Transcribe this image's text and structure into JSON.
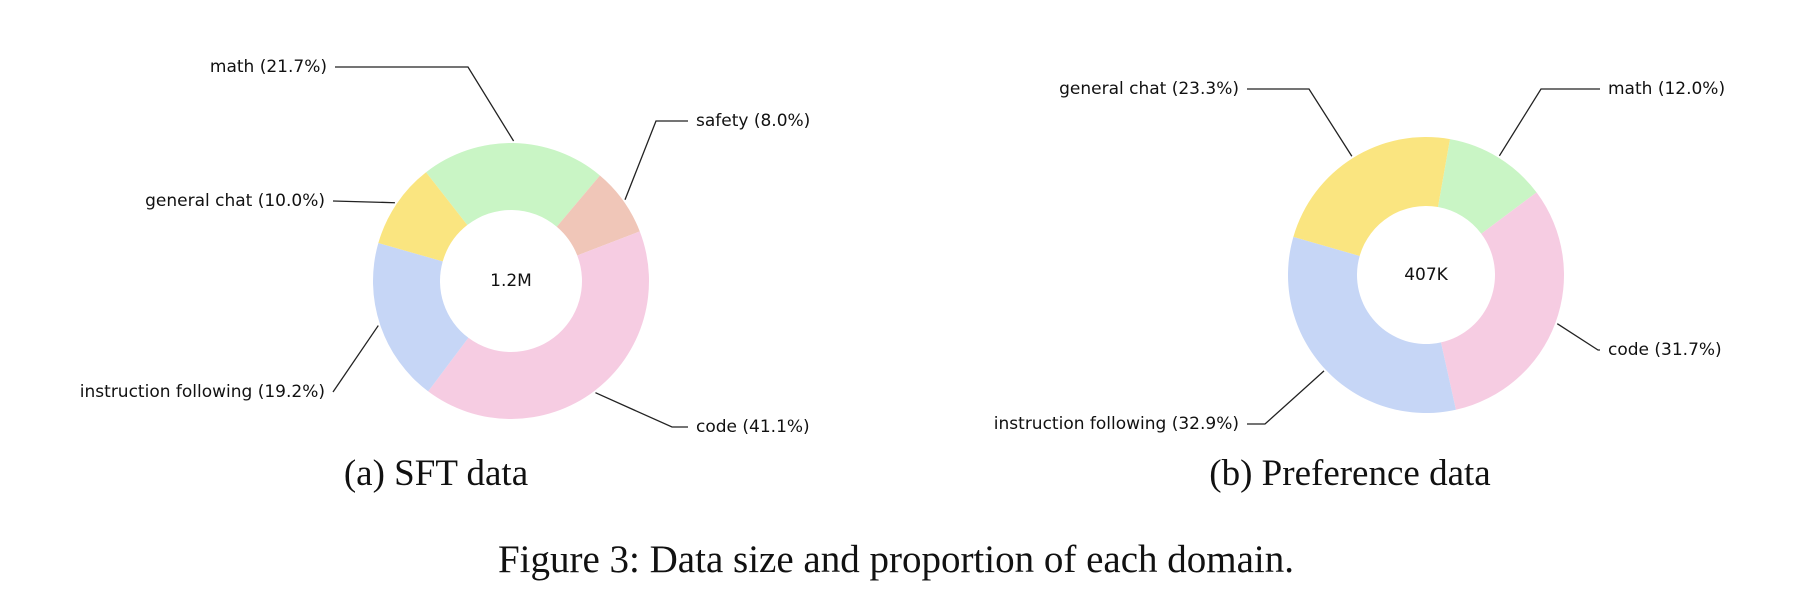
{
  "chart_data": [
    {
      "type": "pie",
      "style": "donut",
      "subcaption": "(a) SFT data",
      "center_label": "1.2M",
      "slices": [
        {
          "label": "math",
          "percent": 21.7,
          "color": "#c9f5c5"
        },
        {
          "label": "safety",
          "percent": 8.0,
          "color": "#f0c6b8"
        },
        {
          "label": "code",
          "percent": 41.1,
          "color": "#f6cce2"
        },
        {
          "label": "instruction following",
          "percent": 19.2,
          "color": "#c6d6f6"
        },
        {
          "label": "general chat",
          "percent": 10.0,
          "color": "#fae580"
        }
      ]
    },
    {
      "type": "pie",
      "style": "donut",
      "subcaption": "(b) Preference data",
      "center_label": "407K",
      "slices": [
        {
          "label": "math",
          "percent": 12.0,
          "color": "#c9f5c5"
        },
        {
          "label": "code",
          "percent": 31.7,
          "color": "#f6cce2"
        },
        {
          "label": "instruction following",
          "percent": 32.9,
          "color": "#c6d6f6"
        },
        {
          "label": "general chat",
          "percent": 23.3,
          "color": "#fae580"
        }
      ]
    }
  ],
  "caption": "Figure 3: Data size and proportion of each domain."
}
